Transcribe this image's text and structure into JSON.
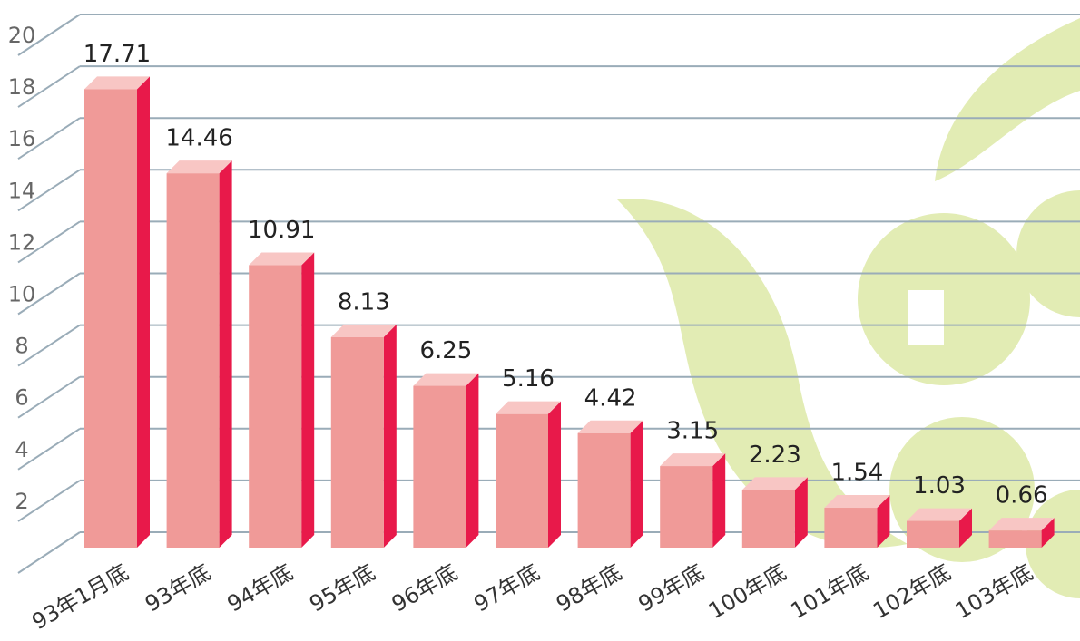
{
  "chart_data": {
    "type": "bar3d",
    "categories": [
      "93年1月底",
      "93年底",
      "94年底",
      "95年底",
      "96年底",
      "97年底",
      "98年底",
      "99年底",
      "100年底",
      "101年底",
      "102年底",
      "103年底"
    ],
    "values": [
      17.71,
      14.46,
      10.91,
      8.13,
      6.25,
      5.16,
      4.42,
      3.15,
      2.23,
      1.54,
      1.03,
      0.66
    ],
    "colors": {
      "front": "#f09a98",
      "side": "#e8194a",
      "top": "#f8c6c4"
    },
    "ylim": [
      0,
      20
    ],
    "yticks": [
      2,
      4,
      6,
      8,
      10,
      12,
      14,
      16,
      18,
      20
    ],
    "grid": true
  }
}
